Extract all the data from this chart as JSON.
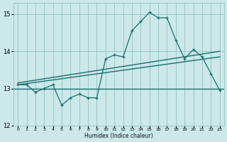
{
  "xlabel": "Humidex (Indice chaleur)",
  "ylabel": "",
  "bg_color": "#cce8e8",
  "grid_color": "#88bbbb",
  "line_color": "#1a6e6e",
  "ylim": [
    12,
    15.3
  ],
  "xlim": [
    -0.5,
    23.5
  ],
  "yticks": [
    12,
    13,
    14,
    15
  ],
  "xticks": [
    0,
    1,
    2,
    3,
    4,
    5,
    6,
    7,
    8,
    9,
    10,
    11,
    12,
    13,
    14,
    15,
    16,
    17,
    18,
    19,
    20,
    21,
    22,
    23
  ],
  "x_data": [
    0,
    1,
    2,
    3,
    4,
    5,
    6,
    7,
    8,
    9,
    10,
    11,
    12,
    13,
    14,
    15,
    16,
    17,
    18,
    19,
    20,
    21,
    22,
    23
  ],
  "y_data": [
    13.1,
    13.1,
    12.9,
    13.0,
    13.1,
    12.55,
    12.75,
    12.85,
    12.75,
    12.75,
    13.8,
    13.9,
    13.85,
    14.55,
    14.8,
    15.05,
    14.9,
    14.9,
    14.3,
    13.8,
    14.05,
    13.85,
    13.4,
    12.95
  ],
  "trend1_start": 13.15,
  "trend1_end": 14.0,
  "trend2_start": 13.1,
  "trend2_end": 13.85,
  "hline_y": 13.0
}
